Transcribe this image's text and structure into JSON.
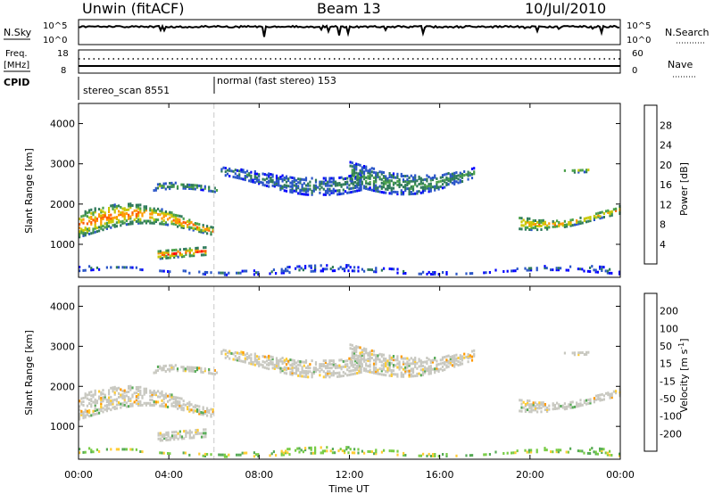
{
  "header": {
    "left": "Unwin (fitACF)",
    "center": "Beam 13",
    "right": "10/Jul/2010"
  },
  "noise_panel": {
    "left_label": "N.Sky",
    "right_label": "N.Search",
    "ticks": [
      "10^5",
      "10^0"
    ]
  },
  "freq_panel": {
    "left_label_1": "Freq.",
    "left_label_2": "[MHz]",
    "right_label": "Nave",
    "left_ticks": [
      "18",
      "8"
    ],
    "right_ticks": [
      "60",
      "0"
    ]
  },
  "cpid_panel": {
    "label": "CPID",
    "segments": [
      {
        "start": 0.0,
        "end": 6.0,
        "text": "stereo_scan 8551"
      },
      {
        "start": 6.0,
        "end": 24.0,
        "text": "normal (fast stereo) 153"
      }
    ]
  },
  "axes": {
    "y_label": "Slant Range [km]",
    "y_ticks": [
      "1000",
      "2000",
      "3000",
      "4000"
    ],
    "x_label": "Time UT",
    "x_ticks": [
      "00:00",
      "04:00",
      "08:00",
      "12:00",
      "16:00",
      "20:00",
      "00:00"
    ]
  },
  "colorbars": {
    "power": {
      "label": "Power [dB]",
      "ticks": [
        "4",
        "8",
        "12",
        "16",
        "20",
        "24",
        "28"
      ],
      "colors": [
        "#0000ff",
        "#2a55c8",
        "#2e7a5a",
        "#4aa04a",
        "#c8c800",
        "#ff9900",
        "#ff5a00",
        "#ff0000"
      ]
    },
    "velocity": {
      "label": "Velocity [m s",
      "label_sup": "-1",
      "label_end": "]",
      "ticks": [
        "200",
        "100",
        "50",
        "15",
        "-15",
        "-50",
        "-100",
        "-200"
      ],
      "colors": [
        "#1f3fbf",
        "#2a7a5a",
        "#55aa55",
        "#77cc44",
        "#c8c8c0",
        "#ffcc33",
        "#ff9900",
        "#ff5500",
        "#ff0000"
      ]
    }
  },
  "chart_data": {
    "type": "heatmap",
    "x_range_hours": [
      0,
      24
    ],
    "y_range_km": [
      180,
      4500
    ],
    "marker_time_hours": 6.0,
    "echo_regions": [
      {
        "start": 0.0,
        "end": 6.0,
        "low": 900,
        "high": 2000,
        "kind": "ionospheric",
        "power": 18
      },
      {
        "start": 3.3,
        "end": 6.2,
        "low": 1900,
        "high": 2600,
        "kind": "ionospheric",
        "power": 10
      },
      {
        "start": 6.3,
        "end": 12.5,
        "low": 2200,
        "high": 3000,
        "kind": "ionospheric",
        "power": 6
      },
      {
        "start": 12.0,
        "end": 17.5,
        "low": 2200,
        "high": 3200,
        "kind": "ionospheric",
        "power": 8
      },
      {
        "start": 19.5,
        "end": 24.0,
        "low": 1200,
        "high": 2200,
        "kind": "ionospheric",
        "power": 16
      },
      {
        "start": 21.5,
        "end": 22.6,
        "low": 2700,
        "high": 3000,
        "kind": "ionospheric",
        "power": 14
      },
      {
        "start": 3.5,
        "end": 5.6,
        "low": 550,
        "high": 900,
        "kind": "ionospheric",
        "power": 20
      },
      {
        "start": 0.0,
        "end": 24.0,
        "low": 180,
        "high": 450,
        "kind": "ground",
        "power": 4
      }
    ]
  }
}
